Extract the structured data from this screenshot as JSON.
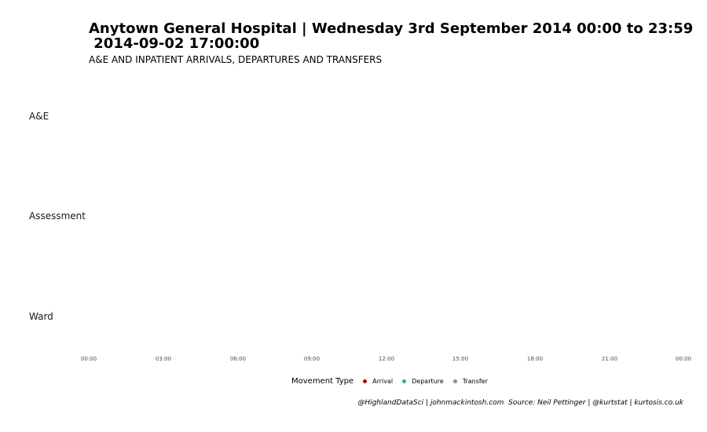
{
  "chart_data": {
    "type": "scatter",
    "title": "Anytown General Hospital | Wednesday 3rd September 2014 00:00 to 23:59\n 2014-09-02 17:00:00",
    "subtitle": "A&E AND INPATIENT ARRIVALS, DEPARTURES AND TRANSFERS",
    "categories": [
      "A&E",
      "Assessment",
      "Ward"
    ],
    "x_ticks": [
      "00:00",
      "03:00",
      "06:00",
      "09:00",
      "12:00",
      "15:00",
      "18:00",
      "21:00",
      "00:00"
    ],
    "legend": {
      "title": "Movement Type",
      "placement": "bottom",
      "items": [
        {
          "label": "Arrival",
          "color": "#b30000"
        },
        {
          "label": "Departure",
          "color": "#2db37a"
        },
        {
          "label": "Transfer",
          "color": "#8c8c8c"
        }
      ]
    },
    "series": [],
    "grid": false,
    "caption": "@HighlandDataSci | johnmackintosh.com  Source: Neil Pettinger | @kurtstat | kurtosis.co.uk"
  }
}
